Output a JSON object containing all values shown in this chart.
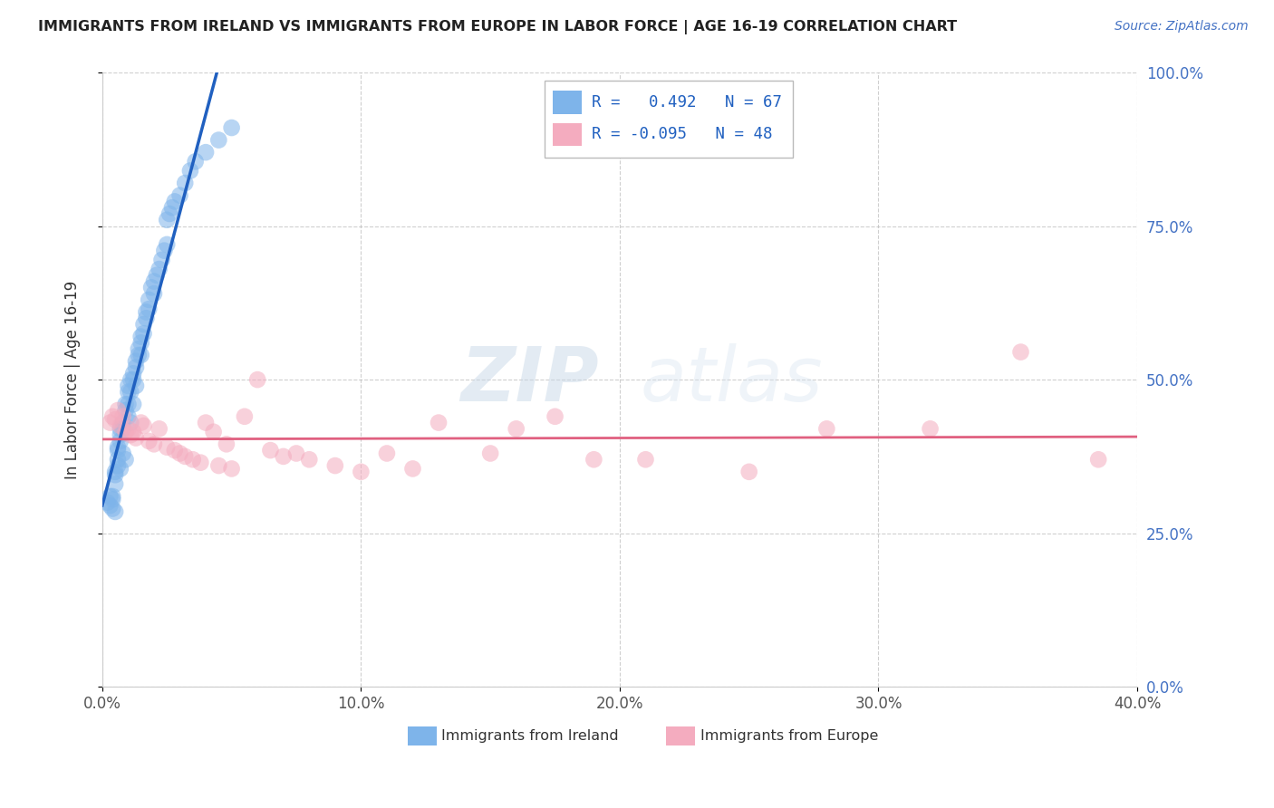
{
  "title": "IMMIGRANTS FROM IRELAND VS IMMIGRANTS FROM EUROPE IN LABOR FORCE | AGE 16-19 CORRELATION CHART",
  "source": "Source: ZipAtlas.com",
  "xlabel_ticks": [
    "0.0%",
    "10.0%",
    "20.0%",
    "30.0%",
    "40.0%"
  ],
  "xlabel_tick_vals": [
    0.0,
    0.1,
    0.2,
    0.3,
    0.4
  ],
  "ylabel": "In Labor Force | Age 16-19",
  "ylabel_ticks": [
    "0.0%",
    "25.0%",
    "50.0%",
    "75.0%",
    "100.0%"
  ],
  "ylabel_tick_vals": [
    0.0,
    0.25,
    0.5,
    0.75,
    1.0
  ],
  "ireland_R": "0.492",
  "ireland_N": "67",
  "europe_R": "-0.095",
  "europe_N": "48",
  "ireland_color": "#7EB4EA",
  "europe_color": "#F4ACBF",
  "ireland_line_color": "#2060C0",
  "europe_line_color": "#E06080",
  "watermark_zip": "ZIP",
  "watermark_atlas": "atlas",
  "xlim": [
    0.0,
    0.4
  ],
  "ylim": [
    0.0,
    1.0
  ],
  "ireland_scatter_x": [
    0.002,
    0.003,
    0.003,
    0.004,
    0.004,
    0.004,
    0.005,
    0.005,
    0.005,
    0.005,
    0.006,
    0.006,
    0.006,
    0.006,
    0.007,
    0.007,
    0.007,
    0.007,
    0.008,
    0.008,
    0.008,
    0.009,
    0.009,
    0.009,
    0.01,
    0.01,
    0.01,
    0.01,
    0.011,
    0.011,
    0.011,
    0.012,
    0.012,
    0.012,
    0.013,
    0.013,
    0.013,
    0.014,
    0.014,
    0.015,
    0.015,
    0.015,
    0.016,
    0.016,
    0.017,
    0.017,
    0.018,
    0.018,
    0.019,
    0.02,
    0.02,
    0.021,
    0.022,
    0.023,
    0.024,
    0.025,
    0.025,
    0.026,
    0.027,
    0.028,
    0.03,
    0.032,
    0.034,
    0.036,
    0.04,
    0.045,
    0.05
  ],
  "ireland_scatter_y": [
    0.3,
    0.295,
    0.31,
    0.31,
    0.305,
    0.29,
    0.35,
    0.345,
    0.33,
    0.285,
    0.39,
    0.385,
    0.37,
    0.36,
    0.42,
    0.41,
    0.4,
    0.355,
    0.43,
    0.42,
    0.38,
    0.46,
    0.45,
    0.37,
    0.49,
    0.48,
    0.46,
    0.44,
    0.5,
    0.48,
    0.43,
    0.51,
    0.5,
    0.46,
    0.53,
    0.52,
    0.49,
    0.55,
    0.54,
    0.57,
    0.56,
    0.54,
    0.59,
    0.575,
    0.61,
    0.6,
    0.63,
    0.615,
    0.65,
    0.66,
    0.64,
    0.67,
    0.68,
    0.695,
    0.71,
    0.72,
    0.76,
    0.77,
    0.78,
    0.79,
    0.8,
    0.82,
    0.84,
    0.855,
    0.87,
    0.89,
    0.91
  ],
  "europe_scatter_x": [
    0.003,
    0.004,
    0.005,
    0.006,
    0.007,
    0.008,
    0.009,
    0.01,
    0.011,
    0.012,
    0.013,
    0.015,
    0.016,
    0.018,
    0.02,
    0.022,
    0.025,
    0.028,
    0.03,
    0.032,
    0.035,
    0.038,
    0.04,
    0.043,
    0.045,
    0.048,
    0.05,
    0.055,
    0.06,
    0.065,
    0.07,
    0.075,
    0.08,
    0.09,
    0.1,
    0.11,
    0.12,
    0.13,
    0.15,
    0.16,
    0.175,
    0.19,
    0.21,
    0.25,
    0.28,
    0.32,
    0.355,
    0.385
  ],
  "europe_scatter_y": [
    0.43,
    0.44,
    0.435,
    0.45,
    0.425,
    0.44,
    0.415,
    0.42,
    0.41,
    0.415,
    0.405,
    0.43,
    0.425,
    0.4,
    0.395,
    0.42,
    0.39,
    0.385,
    0.38,
    0.375,
    0.37,
    0.365,
    0.43,
    0.415,
    0.36,
    0.395,
    0.355,
    0.44,
    0.5,
    0.385,
    0.375,
    0.38,
    0.37,
    0.36,
    0.35,
    0.38,
    0.355,
    0.43,
    0.38,
    0.42,
    0.44,
    0.37,
    0.37,
    0.35,
    0.42,
    0.42,
    0.545,
    0.37
  ]
}
